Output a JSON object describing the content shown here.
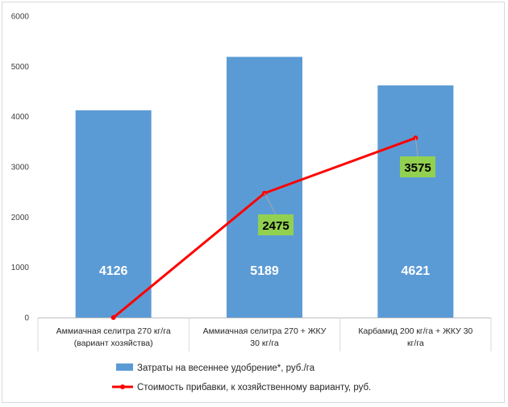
{
  "chart_data": {
    "type": "bar",
    "categories": [
      [
        "Аммиачная селитра 270 кг/га",
        "(вариант хозяйства)"
      ],
      [
        "Аммиачная селитра 270 + ЖКУ",
        "30 кг/га"
      ],
      [
        "Карбамид 200 кг/га + ЖКУ 30",
        "кг/га"
      ]
    ],
    "ylim": [
      0,
      6000
    ],
    "yticks": [
      "0",
      "1000",
      "2000",
      "3000",
      "4000",
      "5000",
      "6000"
    ],
    "grid": false,
    "legend_position": "bottom",
    "series": [
      {
        "name": "Затраты на весеннее удобрение*, руб./га",
        "kind": "bar",
        "color": "#5B9BD5",
        "values": [
          4126,
          5189,
          4621
        ],
        "labels": [
          "4126",
          "5189",
          "4621"
        ]
      },
      {
        "name": "Стоимость прибавки, к хозяйственному варианту, руб.",
        "kind": "line",
        "color": "#FF0000",
        "values": [
          0,
          2475,
          3575
        ],
        "labels": [
          "",
          "2475",
          "3575"
        ],
        "label_bg": "#92D050"
      }
    ]
  }
}
